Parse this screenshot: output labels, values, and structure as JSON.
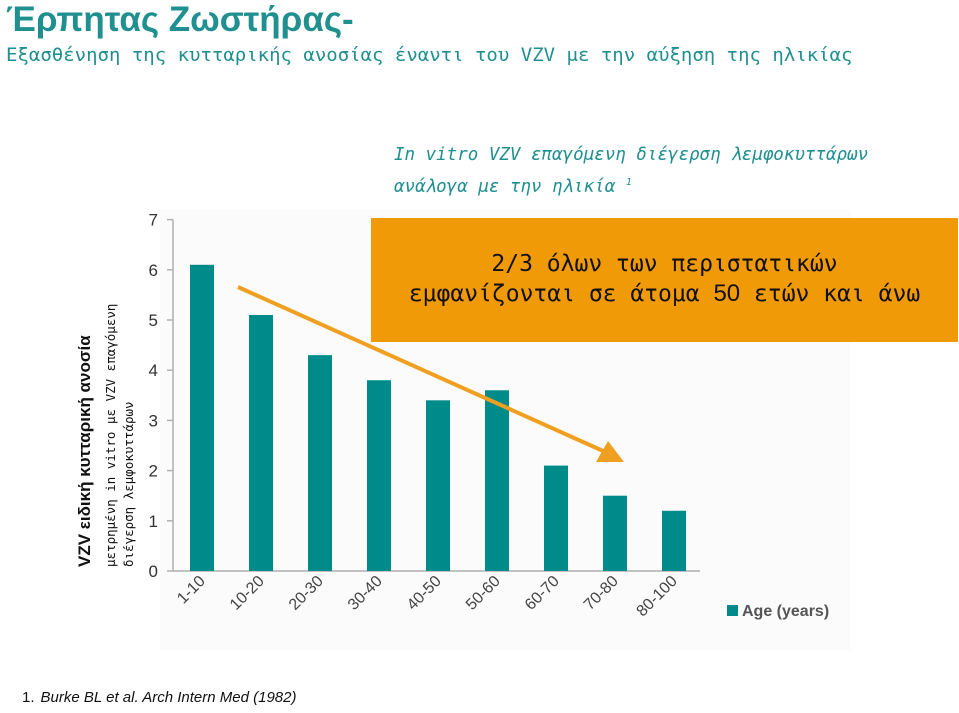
{
  "title": "Έρπητας Ζωστήρας-",
  "subtitle": "Εξασθένηση της κυτταρικής ανοσίας έναντι του VZV με την αύξηση της ηλικίας",
  "chart_title": {
    "line1": "In vitro VZV επαγόμενη διέγερση λεμφοκυττάρων",
    "line2": "ανάλογα με την ηλικία",
    "ref": "1"
  },
  "callout": {
    "line1": "2/3 όλων των περιστατικών",
    "line2_pre": "εμφανίζονται σε άτομα ",
    "line2_num": "50",
    "line2_post": " ετών και άνω"
  },
  "ylabel": {
    "line1": "VZV ειδική κυτταρική ανοσία",
    "line2": "μετρημένη in vitro με VZV επαγόμενη",
    "line3": "διέγερση λεμφοκυττάρων"
  },
  "footnote": {
    "number": "1.",
    "text": "Burke BL et al. Arch Intern Med (1982)"
  },
  "colors": {
    "bar": "#008b8b",
    "title": "#1f8f8f",
    "callout": "#f09a07",
    "arrow": "#f0a020"
  },
  "chart_data": {
    "type": "bar",
    "categories": [
      "1-10",
      "10-20",
      "20-30",
      "30-40",
      "40-50",
      "50-60",
      "60-70",
      "70-80",
      "80-100"
    ],
    "series": [
      {
        "name": "Age (years)",
        "values": [
          6.1,
          5.1,
          4.3,
          3.8,
          3.4,
          3.6,
          2.1,
          1.5,
          1.2
        ]
      }
    ],
    "ylim": [
      0,
      7
    ],
    "yticks": [
      "0",
      "1",
      "2",
      "3",
      "4",
      "5",
      "6",
      "7"
    ],
    "legend": "bottom-right",
    "grid": false
  }
}
